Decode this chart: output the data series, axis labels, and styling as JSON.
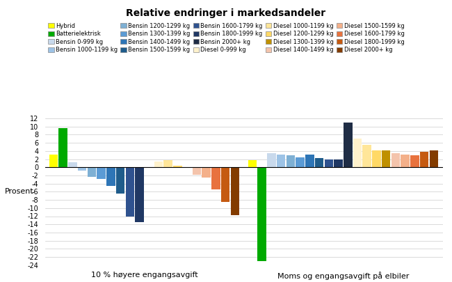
{
  "title": "Relative endringer i markedsandeler",
  "ylabel": "Prosent",
  "groups": [
    "10 % høyere engangsavgift",
    "Moms og engangsavgift på elbiler"
  ],
  "ylim": [
    -24,
    12
  ],
  "yticks": [
    -24,
    -22,
    -20,
    -18,
    -16,
    -14,
    -12,
    -10,
    -8,
    -6,
    -4,
    -2,
    0,
    2,
    4,
    6,
    8,
    10,
    12
  ],
  "series": [
    {
      "label": "Hybrid",
      "color": "#FFFF00",
      "values": [
        3.2,
        1.8
      ]
    },
    {
      "label": "Batterielektrisk",
      "color": "#00AA00",
      "values": [
        9.6,
        -23.0
      ]
    },
    {
      "label": "Bensin 0-999 kg",
      "color": "#C8D9EC",
      "values": [
        1.2,
        3.5
      ]
    },
    {
      "label": "Bensin 1000-1199 kg",
      "color": "#9DC3E6",
      "values": [
        -0.8,
        3.2
      ]
    },
    {
      "label": "Bensin 1200-1299 kg",
      "color": "#7EB0D4",
      "values": [
        -2.3,
        3.0
      ]
    },
    {
      "label": "Bensin 1300-1399 kg",
      "color": "#5B9BD5",
      "values": [
        -2.8,
        2.5
      ]
    },
    {
      "label": "Bensin 1400-1499 kg",
      "color": "#2E75B6",
      "values": [
        -4.5,
        3.2
      ]
    },
    {
      "label": "Bensin 1500-1599 kg",
      "color": "#1F5C8B",
      "values": [
        -6.5,
        2.2
      ]
    },
    {
      "label": "Bensin 1600-1799 kg",
      "color": "#2F528F",
      "values": [
        -12.0,
        1.9
      ]
    },
    {
      "label": "Bensin 1800-1999 kg",
      "color": "#203864",
      "values": [
        -13.5,
        2.0
      ]
    },
    {
      "label": "Bensin 2000+ kg",
      "color": "#1F2D45",
      "values": [
        null,
        11.0
      ]
    },
    {
      "label": "Diesel 0-999 kg",
      "color": "#FFF2CC",
      "values": [
        1.4,
        7.0
      ]
    },
    {
      "label": "Diesel 1000-1199 kg",
      "color": "#FFE699",
      "values": [
        1.7,
        5.5
      ]
    },
    {
      "label": "Diesel 1200-1299 kg",
      "color": "#FFD966",
      "values": [
        0.4,
        4.2
      ]
    },
    {
      "label": "Diesel 1300-1399 kg",
      "color": "#BF9000",
      "values": [
        0.1,
        4.2
      ]
    },
    {
      "label": "Diesel 1400-1499 kg",
      "color": "#F4C4AC",
      "values": [
        -1.8,
        3.5
      ]
    },
    {
      "label": "Diesel 1500-1599 kg",
      "color": "#F4B08A",
      "values": [
        -2.5,
        3.2
      ]
    },
    {
      "label": "Diesel 1600-1799 kg",
      "color": "#E8723E",
      "values": [
        -5.5,
        2.9
      ]
    },
    {
      "label": "Diesel 1800-1999 kg",
      "color": "#C55A11",
      "values": [
        -8.5,
        3.8
      ]
    },
    {
      "label": "Diesel 2000+ kg",
      "color": "#833C00",
      "values": [
        -11.8,
        4.1
      ]
    }
  ],
  "legend_order": [
    0,
    1,
    2,
    3,
    4,
    5,
    6,
    7,
    8,
    9,
    10,
    11,
    12,
    13,
    14,
    15,
    16,
    17,
    18,
    19
  ]
}
